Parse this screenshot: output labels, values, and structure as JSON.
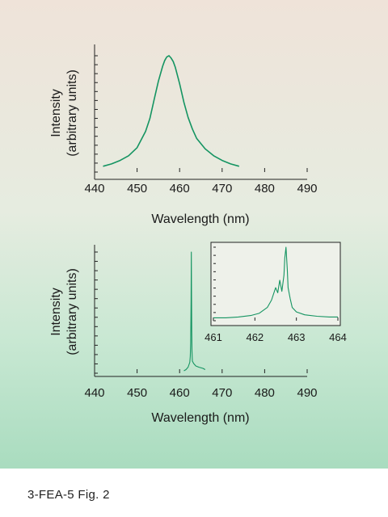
{
  "caption": "3-FEA-5  Fig. 2",
  "chart_data": [
    {
      "type": "line",
      "xlabel": "Wavelength (nm)",
      "ylabel_line1": "Intensity",
      "ylabel_line2": "(arbitrary units)",
      "xlim": [
        440,
        490
      ],
      "xticks": [
        "440",
        "450",
        "460",
        "470",
        "480",
        "490"
      ],
      "ylim": [
        0,
        1
      ],
      "series": [
        {
          "x": [
            442,
            444,
            446,
            448,
            450,
            452,
            453,
            454,
            455,
            456,
            456.5,
            457,
            457.5,
            458,
            458.5,
            459,
            460,
            461,
            462,
            463,
            464,
            466,
            468,
            470,
            472,
            474
          ],
          "y": [
            0.05,
            0.07,
            0.1,
            0.14,
            0.21,
            0.35,
            0.46,
            0.62,
            0.78,
            0.91,
            0.96,
            0.99,
            1.0,
            0.98,
            0.95,
            0.9,
            0.76,
            0.6,
            0.47,
            0.37,
            0.29,
            0.2,
            0.14,
            0.1,
            0.07,
            0.05
          ]
        }
      ]
    },
    {
      "type": "line",
      "xlabel": "Wavelength (nm)",
      "ylabel_line1": "Intensity",
      "ylabel_line2": "(arbitrary units)",
      "xlim": [
        440,
        490
      ],
      "xticks": [
        "440",
        "450",
        "460",
        "470",
        "480",
        "490"
      ],
      "ylim": [
        0,
        1
      ],
      "series": [
        {
          "x": [
            461,
            461.5,
            462.0,
            462.4,
            462.5,
            462.6,
            462.7,
            462.75,
            462.8,
            462.85,
            462.9,
            463.0,
            463.3,
            463.8,
            464.5,
            465.5,
            466.0
          ],
          "y": [
            0.02,
            0.03,
            0.05,
            0.09,
            0.14,
            0.25,
            0.6,
            1.0,
            0.7,
            0.35,
            0.18,
            0.1,
            0.08,
            0.06,
            0.05,
            0.04,
            0.03
          ]
        }
      ]
    },
    {
      "type": "line",
      "inset": true,
      "xlim": [
        461,
        464
      ],
      "xticks": [
        "461",
        "462",
        "463",
        "464"
      ],
      "ylim": [
        0,
        1
      ],
      "series": [
        {
          "x": [
            461.0,
            461.3,
            461.6,
            461.9,
            462.1,
            462.3,
            462.4,
            462.5,
            462.55,
            462.6,
            462.65,
            462.7,
            462.72,
            462.75,
            462.78,
            462.8,
            462.85,
            462.9,
            463.0,
            463.2,
            463.5,
            463.8,
            464.0
          ],
          "y": [
            0.04,
            0.04,
            0.05,
            0.07,
            0.1,
            0.18,
            0.28,
            0.45,
            0.38,
            0.55,
            0.4,
            0.62,
            0.85,
            1.0,
            0.7,
            0.45,
            0.3,
            0.18,
            0.12,
            0.08,
            0.06,
            0.05,
            0.05
          ]
        }
      ]
    }
  ]
}
